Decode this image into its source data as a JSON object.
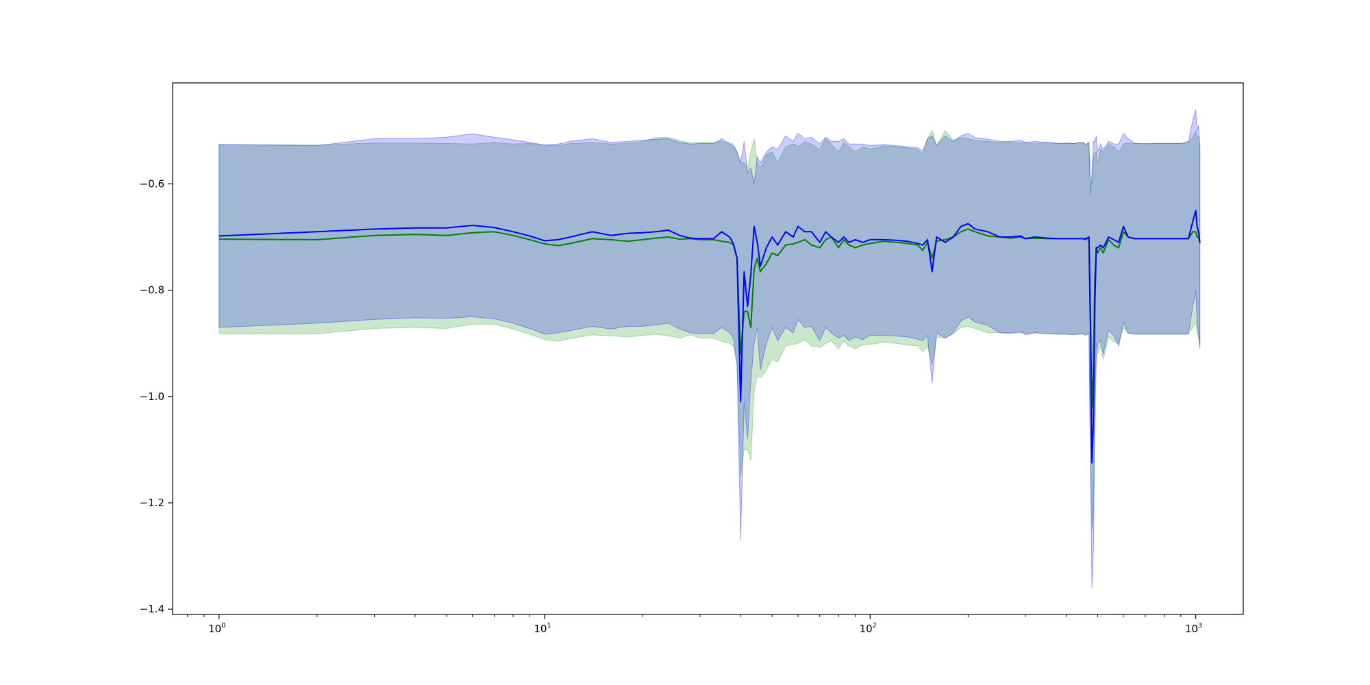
{
  "chart_data": {
    "type": "line",
    "x_scale": "log",
    "xlim": [
      0.72,
      1400
    ],
    "ylim": [
      -1.41,
      -0.41
    ],
    "grid": false,
    "x_ticks": [
      {
        "value": 1,
        "base": "10",
        "exp": "0"
      },
      {
        "value": 10,
        "base": "10",
        "exp": "1"
      },
      {
        "value": 100,
        "base": "10",
        "exp": "2"
      },
      {
        "value": 1000,
        "base": "10",
        "exp": "3"
      }
    ],
    "y_ticks": [
      {
        "value": -0.6,
        "label": "−0.6"
      },
      {
        "value": -0.8,
        "label": "−0.8"
      },
      {
        "value": -1.0,
        "label": "−1.0"
      },
      {
        "value": -1.2,
        "label": "−1.2"
      },
      {
        "value": -1.4,
        "label": "−1.4"
      }
    ],
    "series": [
      {
        "color": "#008000",
        "band_color": "#2ca02c",
        "band_opacity": 0.25,
        "x": [
          1,
          2,
          3,
          4,
          5,
          6,
          7,
          8,
          9,
          10,
          11,
          12,
          14,
          16,
          18,
          20,
          22,
          24,
          26,
          28,
          30,
          33,
          35,
          37,
          38,
          39,
          40,
          41,
          42,
          43,
          44,
          45,
          46,
          48,
          50,
          52,
          55,
          58,
          60,
          63,
          66,
          70,
          73,
          76,
          80,
          83,
          86,
          90,
          95,
          100,
          110,
          120,
          130,
          140,
          145,
          150,
          155,
          160,
          170,
          180,
          190,
          200,
          210,
          230,
          250,
          270,
          290,
          300,
          320,
          350,
          380,
          400,
          420,
          450,
          460,
          470,
          475,
          480,
          485,
          490,
          495,
          500,
          510,
          520,
          540,
          560,
          580,
          600,
          620,
          650,
          700,
          750,
          800,
          850,
          900,
          950,
          980,
          1000,
          1010,
          1020,
          1030
        ],
        "y": [
          -0.704,
          -0.705,
          -0.697,
          -0.695,
          -0.697,
          -0.692,
          -0.69,
          -0.697,
          -0.705,
          -0.713,
          -0.716,
          -0.712,
          -0.703,
          -0.705,
          -0.708,
          -0.705,
          -0.702,
          -0.7,
          -0.704,
          -0.703,
          -0.705,
          -0.705,
          -0.708,
          -0.71,
          -0.715,
          -0.74,
          -0.92,
          -0.84,
          -0.84,
          -0.87,
          -0.76,
          -0.74,
          -0.765,
          -0.75,
          -0.73,
          -0.735,
          -0.715,
          -0.713,
          -0.71,
          -0.705,
          -0.715,
          -0.72,
          -0.705,
          -0.7,
          -0.72,
          -0.705,
          -0.715,
          -0.72,
          -0.715,
          -0.712,
          -0.708,
          -0.71,
          -0.712,
          -0.715,
          -0.725,
          -0.71,
          -0.74,
          -0.708,
          -0.705,
          -0.7,
          -0.69,
          -0.685,
          -0.69,
          -0.698,
          -0.7,
          -0.702,
          -0.7,
          -0.703,
          -0.702,
          -0.703,
          -0.703,
          -0.703,
          -0.703,
          -0.703,
          -0.705,
          -0.7,
          -0.85,
          -1.02,
          -0.95,
          -0.78,
          -0.72,
          -0.73,
          -0.72,
          -0.73,
          -0.705,
          -0.715,
          -0.72,
          -0.69,
          -0.7,
          -0.703,
          -0.703,
          -0.703,
          -0.703,
          -0.703,
          -0.703,
          -0.703,
          -0.69,
          -0.69,
          -0.7,
          -0.7,
          -0.712
        ],
        "y_upper": [
          -0.526,
          -0.527,
          -0.523,
          -0.523,
          -0.524,
          -0.525,
          -0.522,
          -0.525,
          -0.524,
          -0.527,
          -0.528,
          -0.524,
          -0.522,
          -0.525,
          -0.524,
          -0.52,
          -0.513,
          -0.512,
          -0.518,
          -0.523,
          -0.522,
          -0.522,
          -0.52,
          -0.523,
          -0.525,
          -0.54,
          -0.56,
          -0.56,
          -0.57,
          -0.54,
          -0.515,
          -0.56,
          -0.57,
          -0.545,
          -0.54,
          -0.56,
          -0.53,
          -0.525,
          -0.53,
          -0.52,
          -0.525,
          -0.535,
          -0.515,
          -0.525,
          -0.54,
          -0.522,
          -0.53,
          -0.54,
          -0.53,
          -0.535,
          -0.528,
          -0.53,
          -0.532,
          -0.535,
          -0.545,
          -0.515,
          -0.5,
          -0.528,
          -0.5,
          -0.518,
          -0.513,
          -0.515,
          -0.518,
          -0.52,
          -0.522,
          -0.522,
          -0.523,
          -0.522,
          -0.525,
          -0.522,
          -0.524,
          -0.523,
          -0.524,
          -0.522,
          -0.526,
          -0.522,
          -0.59,
          -0.6,
          -0.55,
          -0.54,
          -0.54,
          -0.56,
          -0.535,
          -0.54,
          -0.525,
          -0.53,
          -0.54,
          -0.525,
          -0.523,
          -0.524,
          -0.525,
          -0.524,
          -0.524,
          -0.524,
          -0.524,
          -0.522,
          -0.512,
          -0.5,
          -0.515,
          -0.51,
          -0.525
        ],
        "y_lower": [
          -0.882,
          -0.882,
          -0.872,
          -0.87,
          -0.872,
          -0.864,
          -0.864,
          -0.873,
          -0.883,
          -0.893,
          -0.896,
          -0.891,
          -0.884,
          -0.886,
          -0.888,
          -0.885,
          -0.883,
          -0.886,
          -0.89,
          -0.884,
          -0.89,
          -0.89,
          -0.896,
          -0.9,
          -0.905,
          -0.94,
          -1.15,
          -1.1,
          -1.1,
          -1.12,
          -0.99,
          -0.96,
          -0.965,
          -0.95,
          -0.93,
          -0.935,
          -0.905,
          -0.902,
          -0.9,
          -0.893,
          -0.905,
          -0.908,
          -0.9,
          -0.895,
          -0.91,
          -0.895,
          -0.905,
          -0.91,
          -0.903,
          -0.902,
          -0.898,
          -0.9,
          -0.903,
          -0.905,
          -0.915,
          -0.905,
          -0.94,
          -0.888,
          -0.89,
          -0.882,
          -0.87,
          -0.868,
          -0.872,
          -0.88,
          -0.88,
          -0.882,
          -0.88,
          -0.882,
          -0.88,
          -0.882,
          -0.882,
          -0.882,
          -0.883,
          -0.882,
          -0.884,
          -0.88,
          -1.1,
          -1.25,
          -1.22,
          -1.0,
          -0.9,
          -0.92,
          -0.905,
          -0.93,
          -0.888,
          -0.897,
          -0.9,
          -0.87,
          -0.882,
          -0.882,
          -0.882,
          -0.882,
          -0.882,
          -0.882,
          -0.882,
          -0.882,
          -0.87,
          -0.86,
          -0.88,
          -0.89,
          -0.905
        ]
      },
      {
        "color": "#0000ff",
        "band_color": "#0000ff",
        "band_opacity": 0.2,
        "x": [
          1,
          2,
          3,
          4,
          5,
          6,
          7,
          8,
          9,
          10,
          11,
          12,
          14,
          16,
          18,
          20,
          22,
          24,
          26,
          28,
          30,
          33,
          35,
          37,
          38,
          39,
          40,
          41,
          42,
          43,
          44,
          45,
          46,
          48,
          50,
          52,
          55,
          58,
          60,
          63,
          66,
          70,
          73,
          76,
          80,
          83,
          86,
          90,
          95,
          100,
          110,
          120,
          130,
          140,
          145,
          150,
          155,
          160,
          170,
          180,
          190,
          200,
          210,
          230,
          250,
          270,
          290,
          300,
          320,
          350,
          380,
          400,
          420,
          450,
          460,
          470,
          475,
          480,
          485,
          490,
          495,
          500,
          510,
          520,
          540,
          560,
          580,
          600,
          620,
          650,
          700,
          750,
          800,
          850,
          900,
          950,
          980,
          1000,
          1010,
          1020,
          1030
        ],
        "y": [
          -0.698,
          -0.69,
          -0.685,
          -0.683,
          -0.683,
          -0.678,
          -0.682,
          -0.69,
          -0.698,
          -0.707,
          -0.705,
          -0.7,
          -0.69,
          -0.697,
          -0.693,
          -0.692,
          -0.69,
          -0.687,
          -0.697,
          -0.702,
          -0.703,
          -0.703,
          -0.69,
          -0.7,
          -0.712,
          -0.74,
          -1.01,
          -0.765,
          -0.83,
          -0.77,
          -0.68,
          -0.71,
          -0.755,
          -0.72,
          -0.7,
          -0.715,
          -0.69,
          -0.7,
          -0.68,
          -0.69,
          -0.69,
          -0.71,
          -0.69,
          -0.7,
          -0.71,
          -0.7,
          -0.71,
          -0.705,
          -0.71,
          -0.705,
          -0.705,
          -0.706,
          -0.708,
          -0.712,
          -0.715,
          -0.705,
          -0.765,
          -0.7,
          -0.71,
          -0.7,
          -0.68,
          -0.675,
          -0.685,
          -0.69,
          -0.7,
          -0.7,
          -0.698,
          -0.703,
          -0.7,
          -0.702,
          -0.703,
          -0.703,
          -0.703,
          -0.703,
          -0.703,
          -0.7,
          -0.87,
          -1.125,
          -1.05,
          -0.83,
          -0.72,
          -0.72,
          -0.715,
          -0.72,
          -0.7,
          -0.705,
          -0.71,
          -0.68,
          -0.7,
          -0.703,
          -0.703,
          -0.703,
          -0.703,
          -0.703,
          -0.703,
          -0.703,
          -0.67,
          -0.65,
          -0.68,
          -0.69,
          -0.71
        ],
        "y_upper": [
          -0.526,
          -0.528,
          -0.515,
          -0.515,
          -0.512,
          -0.506,
          -0.512,
          -0.517,
          -0.522,
          -0.527,
          -0.525,
          -0.52,
          -0.515,
          -0.522,
          -0.52,
          -0.518,
          -0.516,
          -0.515,
          -0.522,
          -0.525,
          -0.524,
          -0.524,
          -0.515,
          -0.525,
          -0.53,
          -0.54,
          -0.56,
          -0.52,
          -0.58,
          -0.57,
          -0.6,
          -0.55,
          -0.56,
          -0.54,
          -0.53,
          -0.535,
          -0.51,
          -0.52,
          -0.505,
          -0.515,
          -0.512,
          -0.525,
          -0.512,
          -0.52,
          -0.52,
          -0.515,
          -0.525,
          -0.525,
          -0.525,
          -0.528,
          -0.526,
          -0.528,
          -0.53,
          -0.532,
          -0.538,
          -0.515,
          -0.51,
          -0.528,
          -0.51,
          -0.52,
          -0.51,
          -0.505,
          -0.513,
          -0.516,
          -0.52,
          -0.52,
          -0.518,
          -0.522,
          -0.52,
          -0.522,
          -0.524,
          -0.523,
          -0.524,
          -0.522,
          -0.526,
          -0.522,
          -0.62,
          -0.58,
          -0.52,
          -0.52,
          -0.51,
          -0.54,
          -0.525,
          -0.535,
          -0.52,
          -0.525,
          -0.525,
          -0.505,
          -0.515,
          -0.524,
          -0.524,
          -0.524,
          -0.524,
          -0.524,
          -0.524,
          -0.52,
          -0.48,
          -0.46,
          -0.5,
          -0.49,
          -0.53
        ],
        "y_lower": [
          -0.87,
          -0.862,
          -0.855,
          -0.852,
          -0.853,
          -0.85,
          -0.854,
          -0.862,
          -0.872,
          -0.883,
          -0.88,
          -0.876,
          -0.868,
          -0.873,
          -0.868,
          -0.868,
          -0.865,
          -0.862,
          -0.873,
          -0.88,
          -0.882,
          -0.882,
          -0.87,
          -0.88,
          -0.89,
          -0.94,
          -1.27,
          -1.01,
          -1.08,
          -0.97,
          -0.9,
          -0.87,
          -0.95,
          -0.9,
          -0.87,
          -0.895,
          -0.87,
          -0.88,
          -0.855,
          -0.87,
          -0.868,
          -0.895,
          -0.87,
          -0.88,
          -0.89,
          -0.885,
          -0.895,
          -0.888,
          -0.893,
          -0.885,
          -0.885,
          -0.886,
          -0.888,
          -0.892,
          -0.895,
          -0.885,
          -0.975,
          -0.88,
          -0.89,
          -0.88,
          -0.858,
          -0.85,
          -0.86,
          -0.866,
          -0.88,
          -0.88,
          -0.878,
          -0.884,
          -0.88,
          -0.882,
          -0.883,
          -0.883,
          -0.884,
          -0.882,
          -0.885,
          -0.88,
          -1.12,
          -1.36,
          -1.29,
          -1.06,
          -0.93,
          -0.9,
          -0.895,
          -0.92,
          -0.875,
          -0.885,
          -0.905,
          -0.86,
          -0.88,
          -0.883,
          -0.883,
          -0.883,
          -0.883,
          -0.883,
          -0.883,
          -0.883,
          -0.83,
          -0.8,
          -0.86,
          -0.88,
          -0.91
        ]
      }
    ]
  }
}
